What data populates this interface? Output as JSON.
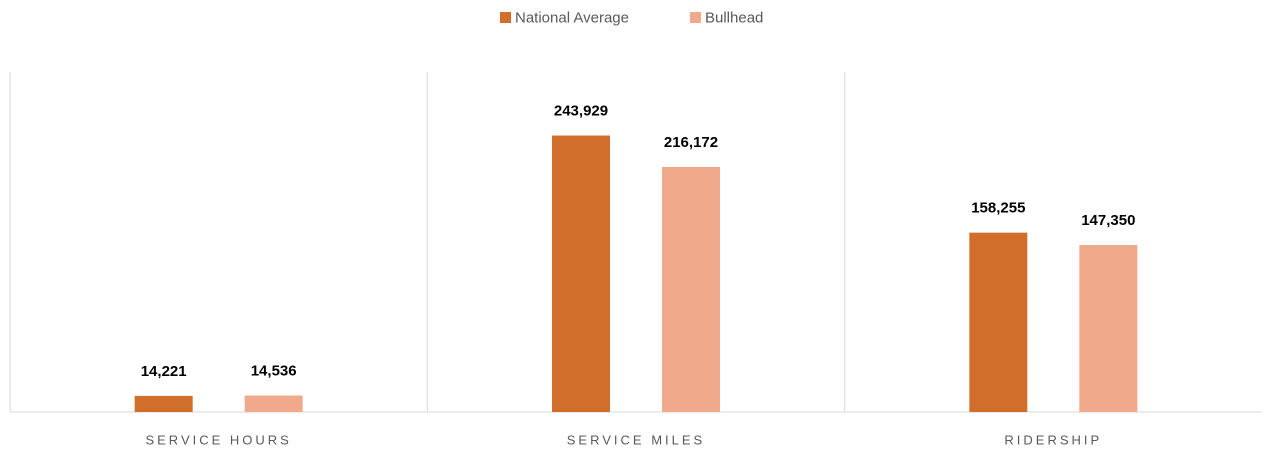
{
  "chart_data": {
    "type": "bar",
    "categories": [
      "SERVICE HOURS",
      "SERVICE MILES",
      "RIDERSHIP"
    ],
    "series": [
      {
        "name": "National Average",
        "color": "#D26E2B",
        "values": [
          14221,
          243929,
          158255
        ],
        "value_labels": [
          "14,221",
          "243,929",
          "158,255"
        ]
      },
      {
        "name": "Bullhead",
        "color": "#F0A98A",
        "values": [
          14536,
          216172,
          147350
        ],
        "value_labels": [
          "14,536",
          "216,172",
          "147,350"
        ]
      }
    ],
    "ylim": [
      0,
      300000
    ],
    "legend": "top"
  }
}
